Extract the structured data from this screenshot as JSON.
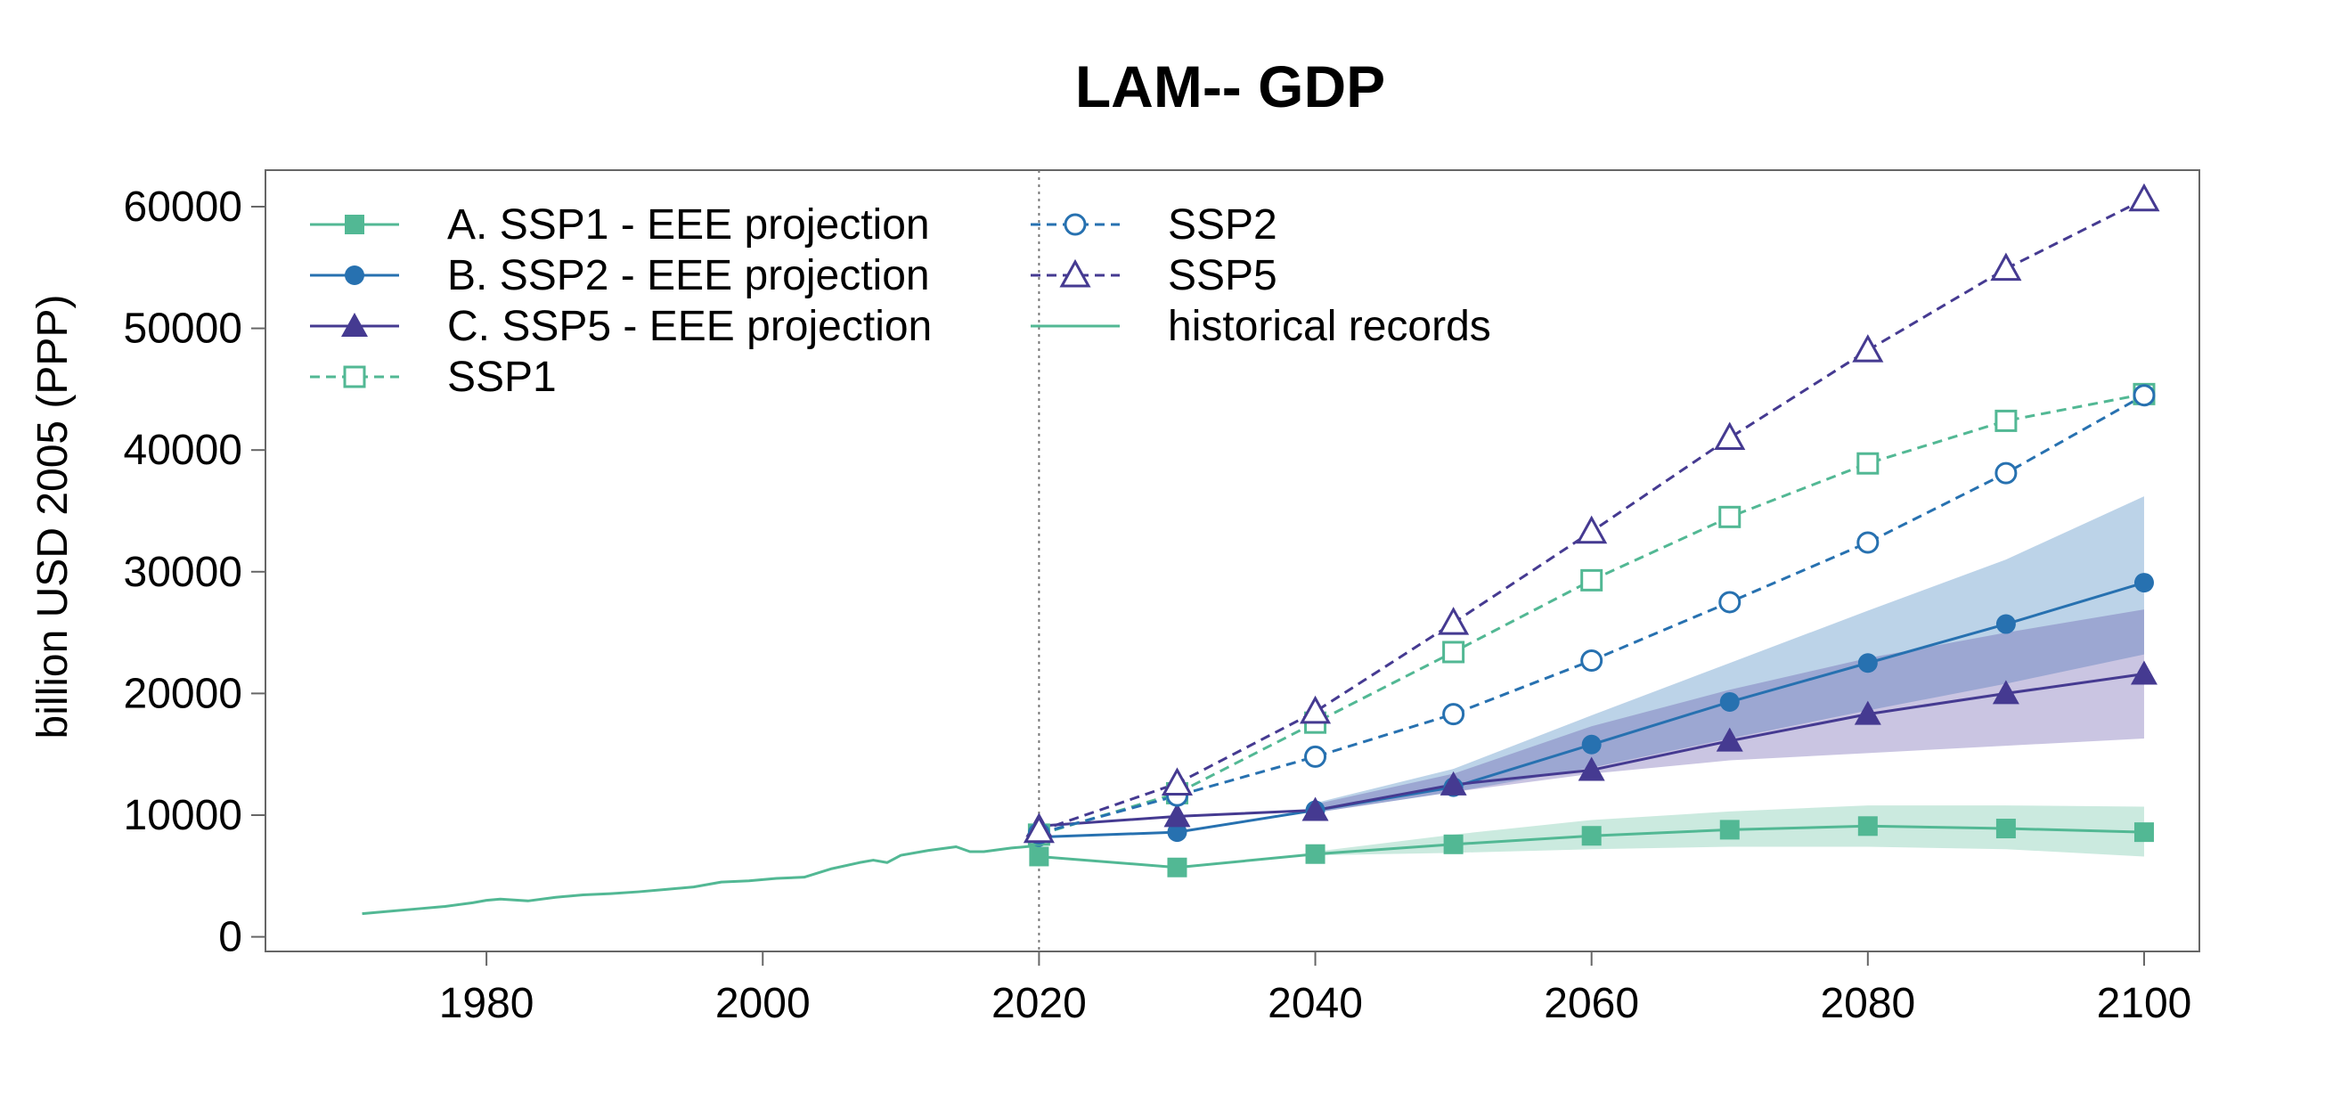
{
  "chart_data": {
    "type": "line",
    "title": "LAM-- GDP",
    "xlabel": "",
    "ylabel": "billion USD 2005 (PPP)",
    "xlim": [
      1964,
      2104
    ],
    "ylim": [
      -1200,
      63000
    ],
    "xticks": [
      1980,
      2000,
      2020,
      2040,
      2060,
      2080,
      2100
    ],
    "yticks": [
      0,
      10000,
      20000,
      30000,
      40000,
      50000,
      60000
    ],
    "xtick_labels": [
      "1980",
      "2000",
      "2020",
      "2040",
      "2060",
      "2080",
      "2100"
    ],
    "ytick_labels": [
      "0",
      "10000",
      "20000",
      "30000",
      "40000",
      "50000",
      "60000"
    ],
    "divider_year": 2020,
    "legend_position": "top-left",
    "colors": {
      "ssp1": "#52b894",
      "ssp2": "#2771b0",
      "ssp5": "#453a91",
      "band_ssp1": "#52b894",
      "band_ssp2": "#2f76b7",
      "band_ssp5": "#5a4ba6"
    },
    "series": [
      {
        "key": "A",
        "name": "A. SSP1 - EEE projection",
        "color": "#52b894",
        "dash": false,
        "marker": "square",
        "filled": true,
        "x": [
          2020,
          2030,
          2040,
          2050,
          2060,
          2070,
          2080,
          2090,
          2100
        ],
        "values": [
          6600,
          5700,
          6800,
          7600,
          8300,
          8800,
          9100,
          8900,
          8600
        ]
      },
      {
        "key": "B",
        "name": "B. SSP2 - EEE projection",
        "color": "#2771b0",
        "dash": false,
        "marker": "circle",
        "filled": true,
        "x": [
          2020,
          2030,
          2040,
          2050,
          2060,
          2070,
          2080,
          2090,
          2100
        ],
        "values": [
          8200,
          8600,
          10400,
          12300,
          15800,
          19300,
          22500,
          25700,
          29100
        ]
      },
      {
        "key": "C",
        "name": "C. SSP5 - EEE projection",
        "color": "#453a91",
        "dash": false,
        "marker": "triangle",
        "filled": true,
        "x": [
          2020,
          2030,
          2040,
          2050,
          2060,
          2070,
          2080,
          2090,
          2100
        ],
        "values": [
          9100,
          9900,
          10400,
          12500,
          13700,
          16100,
          18300,
          20000,
          21600
        ]
      },
      {
        "key": "SSP1",
        "name": "SSP1",
        "color": "#52b894",
        "dash": true,
        "marker": "square",
        "filled": false,
        "x": [
          2020,
          2030,
          2040,
          2050,
          2060,
          2070,
          2080,
          2090,
          2100
        ],
        "values": [
          8400,
          11800,
          17600,
          23400,
          29300,
          34500,
          38900,
          42400,
          44600
        ]
      },
      {
        "key": "SSP2",
        "name": "SSP2",
        "color": "#2771b0",
        "dash": true,
        "marker": "circle",
        "filled": false,
        "x": [
          2020,
          2030,
          2040,
          2050,
          2060,
          2070,
          2080,
          2090,
          2100
        ],
        "values": [
          8500,
          11600,
          14800,
          18300,
          22700,
          27500,
          32400,
          38100,
          44500
        ]
      },
      {
        "key": "SSP5",
        "name": "SSP5",
        "color": "#453a91",
        "dash": true,
        "marker": "triangle",
        "filled": false,
        "x": [
          2020,
          2030,
          2040,
          2050,
          2060,
          2070,
          2080,
          2090,
          2100
        ],
        "values": [
          8700,
          12600,
          18500,
          25800,
          33300,
          41000,
          48200,
          54900,
          60600
        ]
      },
      {
        "key": "HIST",
        "name": "historical records",
        "color": "#52b894",
        "dash": false,
        "marker": "none",
        "filled": false,
        "x": [
          1971,
          1973,
          1975,
          1977,
          1979,
          1980,
          1981,
          1983,
          1985,
          1987,
          1989,
          1991,
          1993,
          1995,
          1997,
          1999,
          2001,
          2003,
          2005,
          2007,
          2008,
          2009,
          2010,
          2012,
          2014,
          2015,
          2016,
          2018,
          2020
        ],
        "values": [
          1900,
          2100,
          2300,
          2500,
          2800,
          3000,
          3100,
          2950,
          3250,
          3450,
          3550,
          3700,
          3900,
          4100,
          4500,
          4600,
          4800,
          4900,
          5600,
          6100,
          6300,
          6100,
          6700,
          7100,
          7400,
          7000,
          7000,
          7300,
          7500
        ]
      }
    ],
    "bands": [
      {
        "key": "band-ssp1",
        "color": "#52b894",
        "opacity": 0.3,
        "x": [
          2040,
          2050,
          2060,
          2070,
          2080,
          2090,
          2100
        ],
        "lower": [
          6700,
          6900,
          7200,
          7400,
          7400,
          7200,
          6600
        ],
        "upper": [
          7000,
          8400,
          9600,
          10300,
          10800,
          10800,
          10700
        ]
      },
      {
        "key": "band-ssp2",
        "color": "#2f76b7",
        "opacity": 0.32,
        "x": [
          2040,
          2050,
          2060,
          2070,
          2080,
          2090,
          2100
        ],
        "lower": [
          10200,
          11900,
          13900,
          16300,
          18600,
          20800,
          23200
        ],
        "upper": [
          11000,
          13800,
          18200,
          22500,
          26800,
          31000,
          36200
        ]
      },
      {
        "key": "band-ssp5",
        "color": "#5a4ba6",
        "opacity": 0.32,
        "x": [
          2040,
          2050,
          2060,
          2070,
          2080,
          2090,
          2100
        ],
        "lower": [
          10200,
          11900,
          13400,
          14500,
          15100,
          15700,
          16300
        ],
        "upper": [
          10900,
          13400,
          17300,
          20300,
          22900,
          25000,
          26900
        ]
      }
    ]
  }
}
